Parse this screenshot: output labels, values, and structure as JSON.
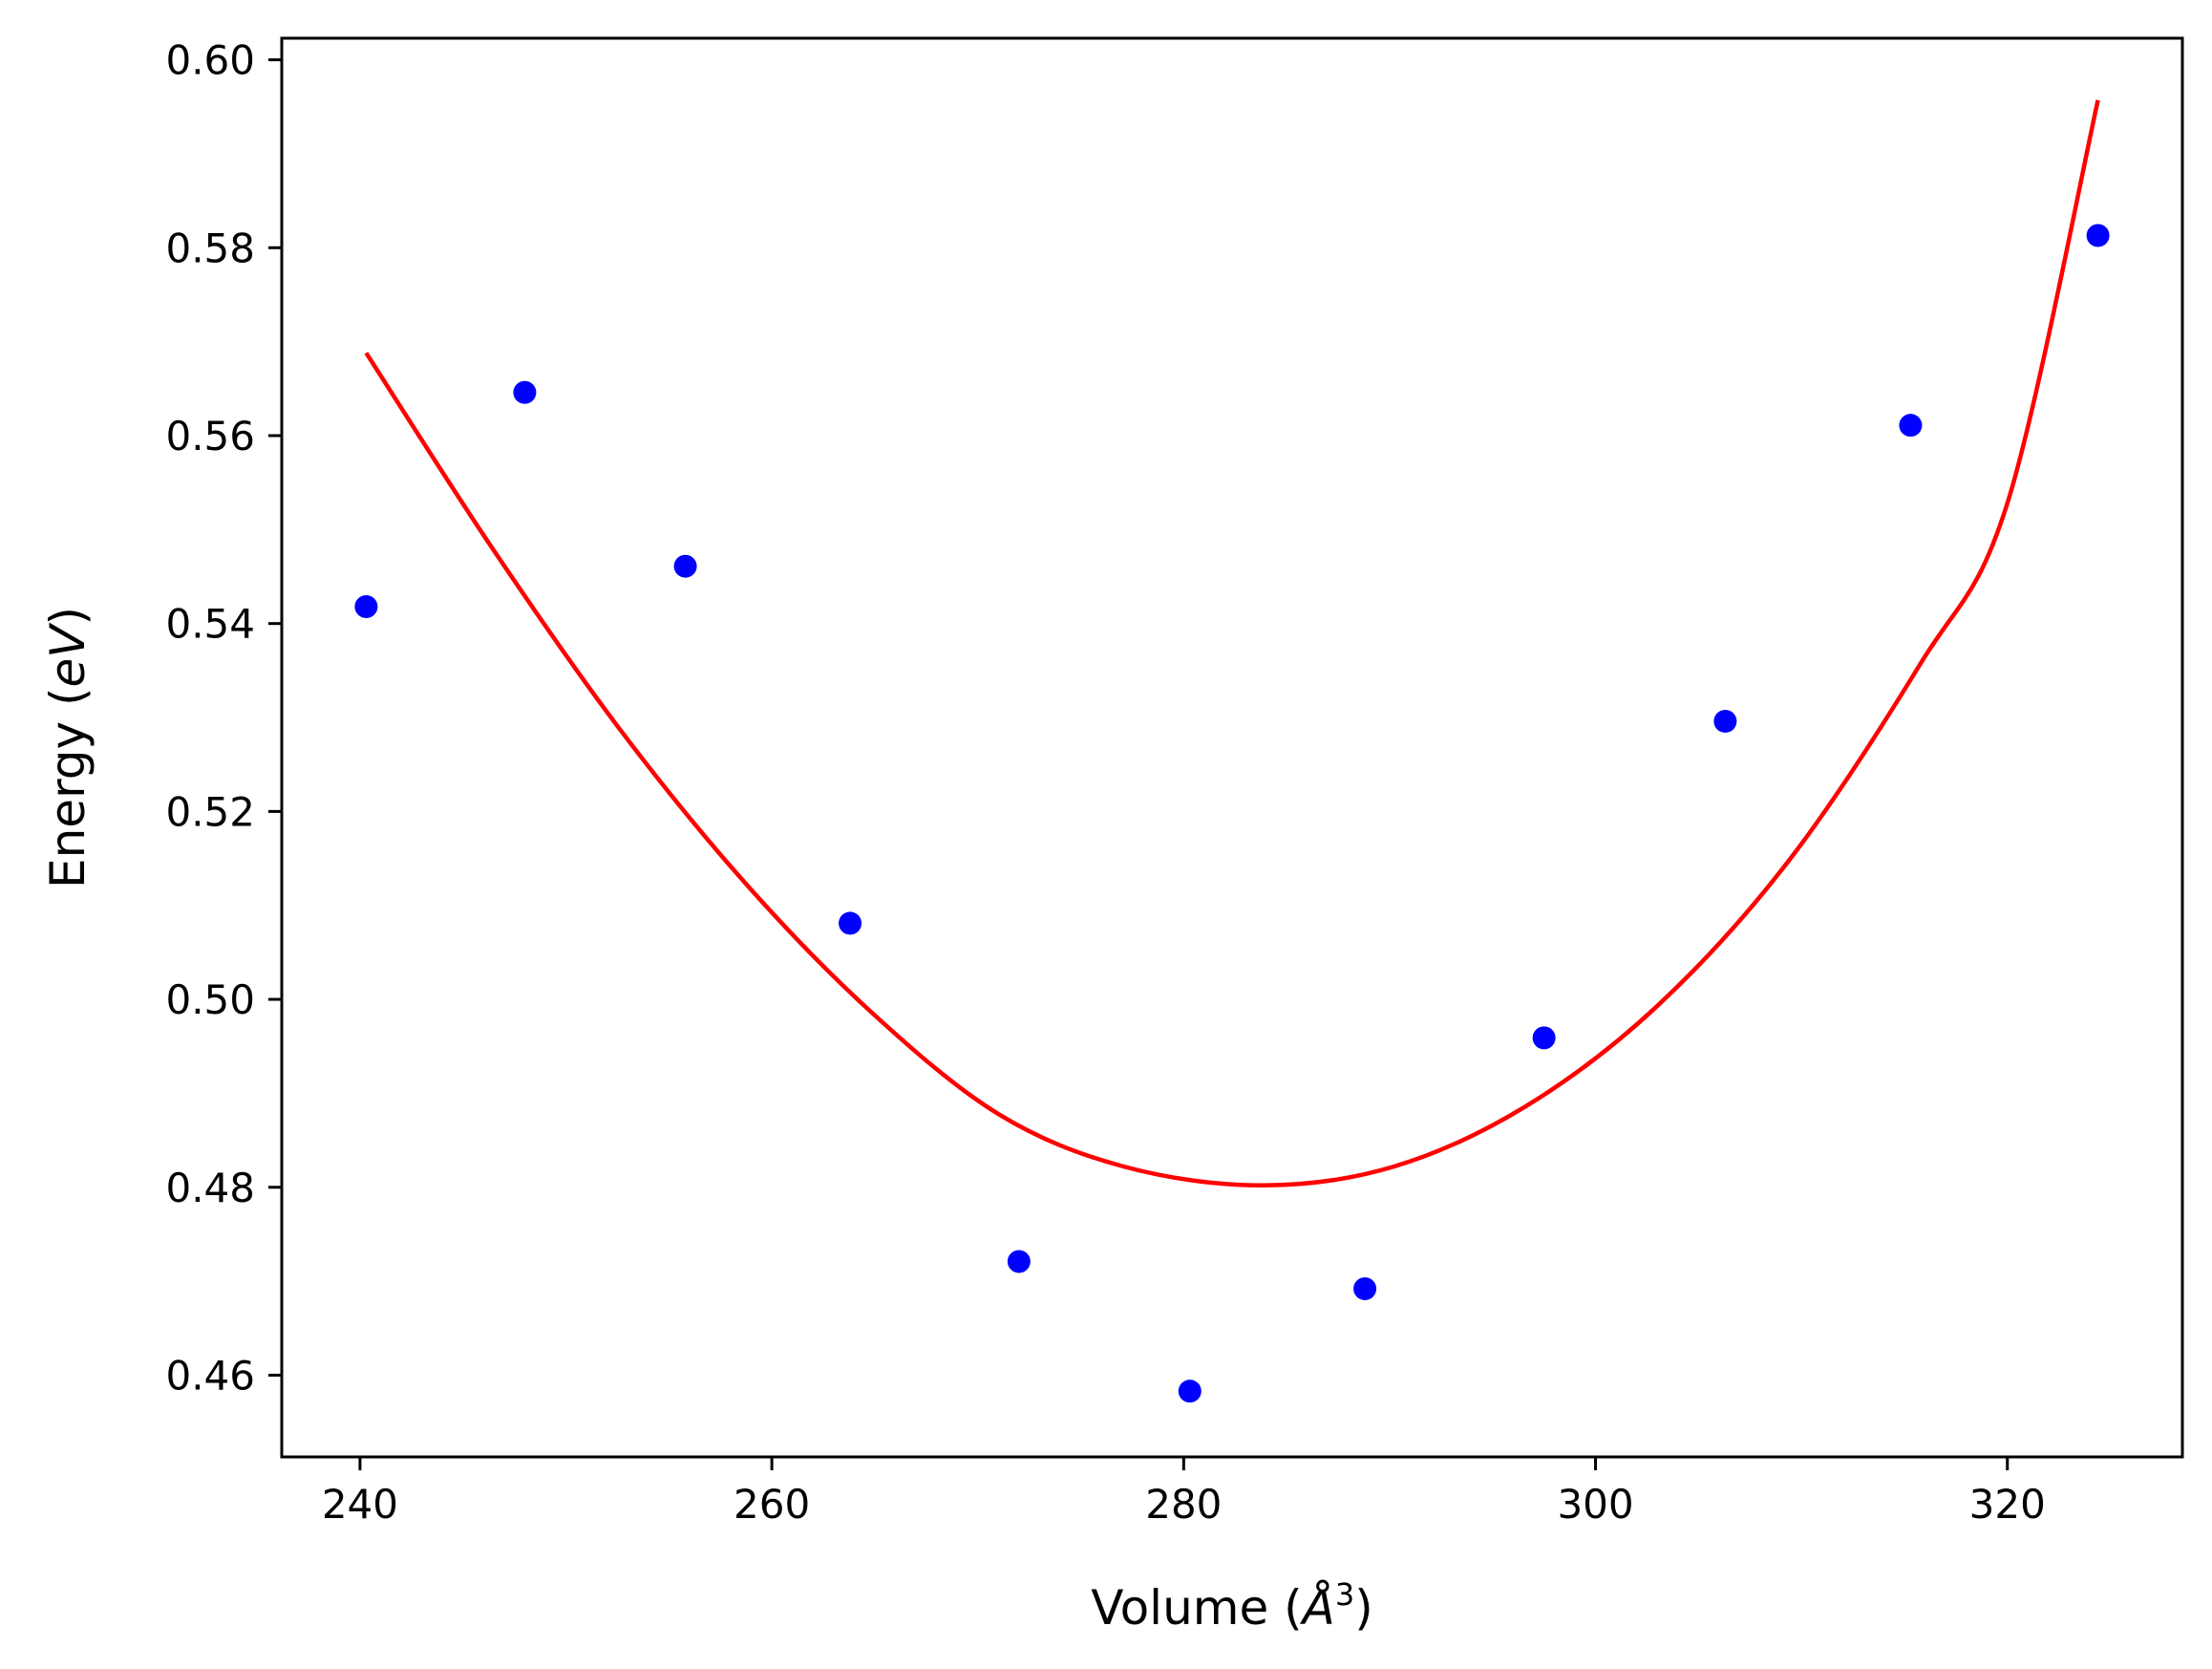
{
  "chart_data": {
    "type": "scatter",
    "title": "",
    "xlabel": {
      "prefix": "Volume (",
      "unit": "Å",
      "exponent": "3",
      "suffix": ")"
    },
    "ylabel": {
      "prefix": "Energy (",
      "unit": "eV",
      "suffix": ")"
    },
    "xlim": [
      236.2,
      328.5
    ],
    "ylim": [
      0.4513,
      0.6023
    ],
    "xticks": [
      240,
      260,
      280,
      300,
      320
    ],
    "yticks": [
      0.46,
      0.48,
      0.5,
      0.52,
      0.54,
      0.56,
      0.58,
      0.6
    ],
    "xtick_labels": [
      "240",
      "260",
      "280",
      "300",
      "320"
    ],
    "ytick_labels": [
      "0.46",
      "0.48",
      "0.50",
      "0.52",
      "0.54",
      "0.56",
      "0.58",
      "0.60"
    ],
    "grid": false,
    "legend": "none",
    "series": [
      {
        "kind": "scatter",
        "color": "#0000ff",
        "x": [
          240.3,
          248.0,
          255.8,
          263.8,
          272.0,
          280.3,
          288.8,
          297.5,
          306.3,
          315.3,
          324.4
        ],
        "y": [
          0.5418,
          0.5646,
          0.5461,
          0.5081,
          0.4721,
          0.4583,
          0.4692,
          0.4959,
          0.5296,
          0.5611,
          0.5813
        ]
      },
      {
        "kind": "line",
        "color": "#ff0000",
        "x": [
          240.3,
          246.4,
          252.6,
          258.7,
          264.8,
          271.0,
          277.1,
          283.8,
          290.2,
          296.6,
          303.0,
          309.4,
          315.8,
          320.0,
          324.4
        ],
        "y": [
          0.5688,
          0.5481,
          0.5288,
          0.5124,
          0.4987,
          0.4878,
          0.4822,
          0.4802,
          0.4822,
          0.4886,
          0.4993,
          0.5148,
          0.5358,
          0.5528,
          0.5957
        ]
      }
    ]
  }
}
